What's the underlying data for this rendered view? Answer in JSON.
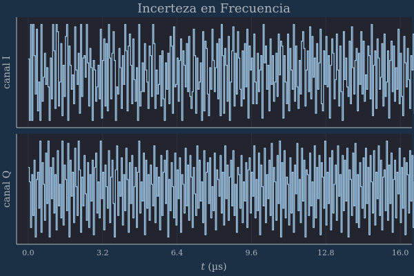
{
  "chart_data": {
    "type": "line",
    "title": "Incerteza en Frecuencia",
    "xlabel_prefix": "t",
    "xlabel_unit": " (µs)",
    "xlim": [
      -0.5,
      16.5
    ],
    "x_ticks": [
      "0.0",
      "3.2",
      "6.4",
      "9.6",
      "12.8",
      "16.0"
    ],
    "x_tick_values": [
      0.0,
      3.2,
      6.4,
      9.6,
      12.8,
      16.0
    ],
    "ylim": [
      -1.15,
      1.15
    ],
    "grid": true,
    "line_style": "step",
    "colors": {
      "background": "#1b3044",
      "plot_area": "#22252e",
      "signal": "#a9d3f5",
      "axis": "#b9c1c9",
      "grid": "#2e323b",
      "text": "#aeb4bc"
    },
    "panels": [
      {
        "ylabel": "canal I",
        "series": [
          {
            "x_start": 0.0,
            "x_step": 0.05,
            "values": [
              0.28,
              -1.0,
              1.0,
              -1.0,
              1.0,
              0.35,
              -0.45,
              0.9,
              -0.8,
              -0.2,
              -1.0,
              1.0,
              -0.6,
              -0.1,
              0.4,
              -0.25,
              0.1,
              -0.3,
              -1.0,
              0.3,
              -0.55,
              1.0,
              0.45,
              -0.75,
              1.0,
              0.85,
              -0.7,
              -0.2,
              0.6,
              -0.9,
              0.15,
              -0.5,
              0.75,
              1.0,
              -1.0,
              0.55,
              0.15,
              -0.35,
              -0.05,
              -0.65,
              0.95,
              0.05,
              -0.25,
              0.4,
              -0.85,
              1.0,
              -0.5,
              0.3,
              0.35,
              -0.1,
              1.0,
              0.2,
              -0.7,
              0.5,
              0.1,
              -1.0,
              0.25,
              0.05,
              -0.6,
              -0.3,
              0.15,
              -0.55,
              0.9,
              -0.95,
              0.25,
              0.7,
              -0.7,
              0.6,
              -0.8,
              1.0,
              0.3,
              -0.55,
              0.4,
              0.85,
              0.25,
              -1.0,
              -0.3,
              -0.45,
              0.5,
              0.1,
              -0.75,
              0.35,
              -0.25,
              1.0,
              0.45,
              -0.8,
              0.55,
              0.8,
              0.15,
              -0.65,
              0.7,
              -0.15,
              -0.6,
              0.1,
              -1.0,
              1.0,
              -0.7,
              -0.4,
              0.2,
              -0.4,
              0.6,
              0.05,
              -0.2,
              -0.75,
              0.55,
              0.35,
              -0.5,
              1.0,
              0.6,
              -0.75,
              0.05,
              -0.45,
              -0.25,
              0.35,
              -0.7,
              0.45,
              -0.55,
              -1.0,
              0.2,
              -0.35,
              0.4,
              -0.65,
              0.75,
              0.55,
              -0.85,
              0.95,
              -0.3,
              -0.25,
              0.3,
              -0.6,
              0.25,
              0.7,
              -1.0,
              0.45,
              0.15,
              -0.3,
              0.6,
              -0.4,
              0.75,
              -0.5,
              -0.75,
              -0.4,
              0.9,
              0.35,
              -0.85,
              0.3,
              -0.35,
              -0.2,
              0.2,
              -1.0,
              0.85,
              -0.8,
              0.65,
              0.5,
              -0.45,
              -0.9,
              0.1,
              -0.35,
              0.9,
              0.25,
              -0.4,
              0.1,
              0.6,
              -0.55,
              0.7,
              -0.9,
              1.0,
              0.35,
              -0.85,
              0.5,
              0.15,
              -0.6,
              0.75,
              -1.0,
              -0.2,
              0.45,
              0.95,
              -0.7,
              0.4,
              -0.45,
              0.85,
              0.3,
              -0.35,
              -0.7,
              0.45,
              -0.55,
              0.6,
              -0.3,
              0.9,
              -0.95,
              0.55,
              0.05,
              0.3,
              -0.65,
              0.8,
              -0.2,
              -0.65,
              0.4,
              -0.4,
              0.05,
              0.35,
              -0.95,
              1.0,
              0.2,
              0.55,
              -0.35,
              0.15,
              -0.8,
              0.7,
              -0.25,
              0.35,
              -0.6,
              -0.2,
              0.4,
              -0.5,
              0.8,
              -0.05,
              0.65,
              0.55,
              -0.95,
              0.35,
              -0.2,
              -0.65,
              0.8,
              -0.8,
              0.5,
              0.05,
              -0.35,
              1.0,
              -0.6,
              0.55,
              -0.3,
              -0.75,
              0.25,
              -0.45,
              0.65,
              0.85,
              0.5,
              -0.7,
              0.05,
              0.45,
              -0.4,
              0.95,
              -0.55,
              0.75,
              -0.1,
              0.3,
              -0.85,
              0.6,
              -0.35,
              0.2,
              0.9,
              -0.65,
              -0.8,
              0.45,
              -0.25,
              0.75,
              -0.3,
              0.35,
              -0.95,
              0.15,
              0.7,
              0.4,
              -0.55,
              -0.15,
              0.8,
              0.05,
              -0.7,
              0.55,
              -0.4,
              -1.0,
              0.85,
              -0.15,
              0.3,
              -0.3,
              -0.5,
              0.65,
              -0.65,
              0.95,
              0.1,
              -0.45,
              0.25,
              0.5,
              -0.8,
              0.4,
              -0.25,
              0.85,
              -0.45,
              0.65,
              -0.6,
              -0.05,
              -0.35,
              0.55,
              0.35,
              -0.55,
              1.0,
              -0.9,
              0.15,
              0.45,
              -0.75,
              0.7,
              0.3,
              -0.35,
              -0.1,
              0.6,
              -0.7,
              0.8,
              -0.5,
              -0.2,
              0.45,
              -0.95,
              0.25,
              0.65,
              -0.4,
              0.55,
              -0.6,
              0.1,
              -0.35,
              0.9,
              -0.65,
              0.4,
              -0.5,
              -0.9,
              0.75,
              0.2,
              -0.3,
              0.5,
              -0.15,
              -0.75,
              0.35,
              0.05,
              0.8,
              -0.85,
              0.6,
              0.3,
              -0.55,
              0.1,
              -0.3,
              -0.45,
              -0.35
            ]
          }
        ]
      },
      {
        "ylabel": "canal Q",
        "series": [
          {
            "x_start": 0.0,
            "x_step": 0.05,
            "values": [
              0.45,
              0.15,
              -0.8,
              0.3,
              -0.55,
              0.6,
              -1.0,
              0.2,
              0.35,
              -0.4,
              1.0,
              -0.9,
              0.55,
              0.1,
              -0.65,
              0.75,
              -0.3,
              1.0,
              -1.0,
              0.45,
              -0.2,
              0.65,
              -0.5,
              0.3,
              -0.85,
              0.8,
              -0.35,
              0.1,
              -0.6,
              1.0,
              -0.75,
              0.5,
              0.2,
              -0.45,
              0.95,
              -1.0,
              0.6,
              -0.15,
              0.35,
              -0.7,
              0.85,
              0.05,
              -0.55,
              1.0,
              0.4,
              -0.9,
              0.25,
              -0.35,
              0.7,
              -0.1,
              -0.65,
              0.55,
              -0.8,
              0.3,
              -0.25,
              0.6,
              -0.95,
              0.45,
              0.75,
              -0.5,
              0.15,
              -0.6,
              1.0,
              -0.2,
              0.35,
              -0.85,
              0.5,
              0.05,
              -0.4,
              0.8,
              -0.7,
              0.25,
              0.6,
              -0.3,
              -1.0,
              0.4,
              0.9,
              -0.55,
              0.15,
              -0.15,
              0.65,
              -0.75,
              0.3,
              -0.45,
              0.85,
              0.2,
              -0.9,
              0.55,
              -0.3,
              0.7,
              -0.6,
              0.05,
              0.45,
              -0.8,
              0.35,
              1.0,
              -0.5,
              0.15,
              -0.25,
              0.75,
              -0.95,
              0.6,
              -0.4,
              0.3,
              -0.65,
              0.5,
              0.1,
              -0.35,
              0.9,
              -0.7,
              0.45,
              -0.15,
              0.25,
              -0.85,
              0.7,
              -0.55,
              0.35,
              0.6,
              -0.3,
              0.8,
              -1.0,
              0.2,
              -0.45,
              0.55,
              0.05,
              -0.6,
              0.75,
              -0.75,
              0.4,
              -0.2,
              0.65,
              -0.9,
              0.3,
              0.1,
              -0.5,
              0.85,
              -0.35,
              0.5,
              -0.65,
              0.7,
              0.25,
              -0.8,
              0.45,
              -0.1,
              -0.55,
              0.9,
              -0.4,
              0.6,
              -0.25,
              0.15,
              -0.7,
              0.8,
              -0.95,
              0.35,
              0.55,
              -0.3,
              0.65,
              -0.6,
              0.05,
              -0.45,
              0.75,
              -0.85,
              0.4,
              0.2,
              -0.15,
              0.7,
              -0.5,
              0.35,
              -0.75,
              0.9,
              -0.2,
              0.5,
              -0.65,
              0.25,
              0.6,
              -0.35,
              0.8,
              -0.55,
              0.1,
              -0.9,
              0.45,
              0.3,
              -0.4,
              0.7,
              -0.7,
              0.15,
              -0.25,
              0.55,
              -0.8,
              0.4,
              0.65,
              -0.5,
              0.35,
              -0.15,
              0.9,
              -0.6,
              0.2,
              -0.45,
              0.75,
              -0.95,
              0.5,
              0.05,
              -0.35,
              0.85,
              -0.7,
              0.3,
              -0.2,
              0.6,
              -0.55,
              0.95,
              -0.85,
              0.45,
              0.15,
              -0.65,
              0.7,
              -0.3,
              1.0,
              -1.0,
              0.55,
              -0.4,
              0.8,
              -0.6,
              0.25,
              0.1,
              -0.75,
              0.65,
              -0.5,
              0.35,
              -0.9,
              0.5,
              -0.1,
              0.95,
              -0.45,
              0.2,
              -0.7,
              0.85,
              -0.25,
              0.6,
              -1.0,
              0.4,
              0.3,
              -0.55,
              0.75,
              -0.35,
              0.15,
              -0.8,
              0.9,
              -0.6,
              0.45,
              -0.2,
              0.7,
              -0.95,
              0.55,
              0.25,
              -0.4,
              1.0,
              -0.75,
              0.35,
              -0.3,
              0.65,
              -0.85,
              0.8,
              -0.5,
              0.1,
              0.5,
              -0.65,
              0.9,
              -0.15,
              0.3,
              -0.9,
              0.7,
              -0.45,
              0.6,
              -0.25,
              0.85,
              -1.0,
              0.4,
              0.2,
              -0.55,
              0.75,
              -0.35,
              0.95,
              -0.7,
              0.3,
              -0.8,
              0.55,
              0.05,
              -0.4,
              0.65,
              -0.6,
              0.85,
              -0.3,
              0.45,
              -0.95,
              0.7,
              0.15,
              -0.5,
              0.8,
              -0.75,
              0.35,
              -0.2,
              0.9,
              -0.55,
              0.6,
              -0.85,
              0.25,
              0.4,
              -0.45,
              1.0,
              -0.65,
              0.5,
              -0.3,
              0.75,
              -0.9,
              0.2,
              0.6,
              -0.6,
              0.35,
              -0.1,
              0.85,
              -0.7,
              0.45,
              -0.4,
              0.65,
              -0.95,
              0.55,
              0.3,
              -0.5,
              0.8,
              -0.25,
              0.7,
              -0.8,
              0.15,
              0.9,
              -0.35,
              0.5,
              -0.6,
              0.25,
              -0.75,
              0.65,
              -0.45,
              0.4,
              -0.15,
              0.55,
              -0.2,
              0.3,
              -0.05
            ]
          }
        ]
      }
    ]
  }
}
